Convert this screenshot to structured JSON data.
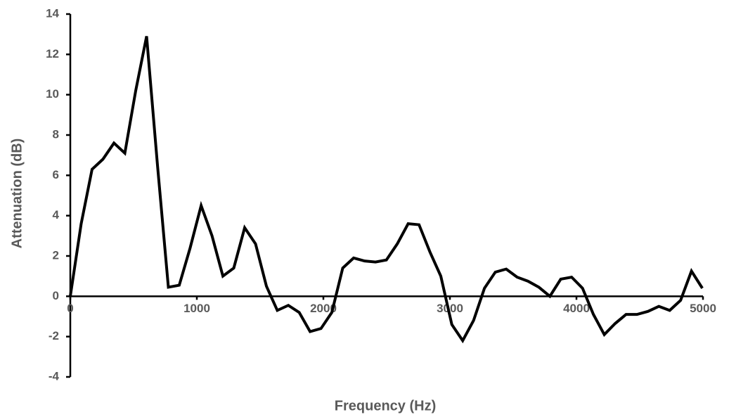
{
  "chart_data": {
    "type": "line",
    "x_label": "Frequency (Hz)",
    "y_label": "Attenuation (dB)",
    "x": [
      0,
      86,
      172,
      258,
      345,
      431,
      517,
      603,
      689,
      775,
      861,
      947,
      1034,
      1120,
      1206,
      1292,
      1378,
      1464,
      1550,
      1636,
      1723,
      1809,
      1895,
      1981,
      2067,
      2153,
      2239,
      2326,
      2412,
      2498,
      2584,
      2670,
      2756,
      2842,
      2928,
      3015,
      3101,
      3187,
      3273,
      3359,
      3445,
      3531,
      3617,
      3703,
      3790,
      3876,
      3962,
      4048,
      4134,
      4220,
      4306,
      4392,
      4478,
      4565,
      4651,
      4737,
      4823,
      4909,
      4995
    ],
    "series": [
      {
        "color": "#000000",
        "values": [
          0,
          3.6,
          6.3,
          6.8,
          7.6,
          7.1,
          10.2,
          12.9,
          6.5,
          0.45,
          0.55,
          2.4,
          4.5,
          3.0,
          1.0,
          1.4,
          3.4,
          2.6,
          0.5,
          -0.7,
          -0.45,
          -0.8,
          -1.75,
          -1.6,
          -0.8,
          1.4,
          1.9,
          1.75,
          1.7,
          1.8,
          2.6,
          3.6,
          3.55,
          2.2,
          1.0,
          -1.4,
          -2.2,
          -1.2,
          0.4,
          1.2,
          1.35,
          0.95,
          0.75,
          0.45,
          0.0,
          0.85,
          0.95,
          0.4,
          -0.9,
          -1.9,
          -1.35,
          -0.9,
          -0.9,
          -0.75,
          -0.5,
          -0.7,
          -0.2,
          1.25,
          0.4
        ]
      }
    ],
    "xlim": [
      0,
      5000
    ],
    "xticks": [
      0,
      1000,
      2000,
      3000,
      4000,
      5000
    ],
    "ylim": [
      -4,
      14
    ],
    "yticks": [
      -4,
      -2,
      0,
      2,
      4,
      6,
      8,
      10,
      12,
      14
    ]
  }
}
